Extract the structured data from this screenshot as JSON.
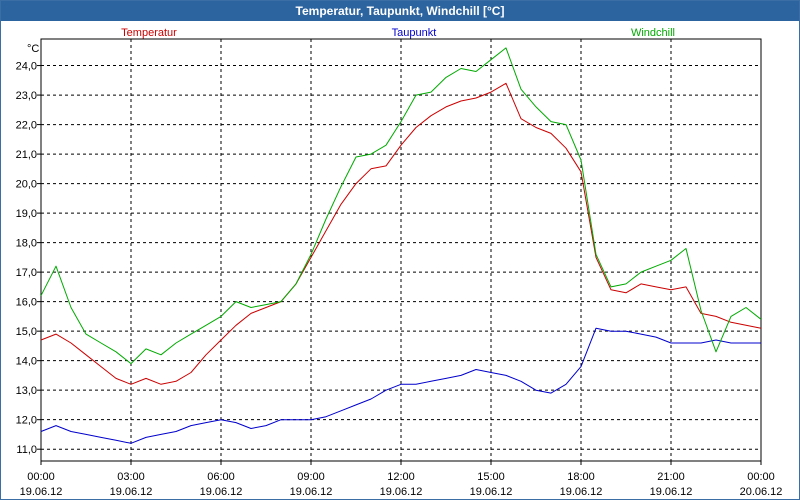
{
  "window": {
    "title": "Temperatur, Taupunkt, Windchill [°C]"
  },
  "chart_data": {
    "type": "line",
    "title": "Temperatur, Taupunkt, Windchill [°C]",
    "ylabel": "°C",
    "ylim": [
      10.6,
      24.9
    ],
    "grid": true,
    "legend_placement": "top",
    "yticks": [
      "24,0",
      "23,0",
      "22,0",
      "21,0",
      "20,0",
      "19,0",
      "18,0",
      "17,0",
      "16,0",
      "15,0",
      "14,0",
      "13,0",
      "12,0",
      "11,0"
    ],
    "ytick_values": [
      24,
      23,
      22,
      21,
      20,
      19,
      18,
      17,
      16,
      15,
      14,
      13,
      12,
      11
    ],
    "xticks": [
      {
        "time": "00:00",
        "date": "19.06.12",
        "hour": 0
      },
      {
        "time": "03:00",
        "date": "19.06.12",
        "hour": 3
      },
      {
        "time": "06:00",
        "date": "19.06.12",
        "hour": 6
      },
      {
        "time": "09:00",
        "date": "19.06.12",
        "hour": 9
      },
      {
        "time": "12:00",
        "date": "19.06.12",
        "hour": 12
      },
      {
        "time": "15:00",
        "date": "19.06.12",
        "hour": 15
      },
      {
        "time": "18:00",
        "date": "19.06.12",
        "hour": 18
      },
      {
        "time": "21:00",
        "date": "19.06.12",
        "hour": 21
      },
      {
        "time": "00:00",
        "date": "20.06.12",
        "hour": 24
      }
    ],
    "xlim": [
      0,
      24
    ],
    "x": [
      0,
      0.5,
      1,
      1.5,
      2,
      2.5,
      3,
      3.5,
      4,
      4.5,
      5,
      5.5,
      6,
      6.5,
      7,
      7.5,
      8,
      8.5,
      9,
      9.5,
      10,
      10.5,
      11,
      11.5,
      12,
      12.5,
      13,
      13.5,
      14,
      14.5,
      15,
      15.5,
      16,
      16.5,
      17,
      17.5,
      18,
      18.5,
      19,
      19.5,
      20,
      20.5,
      21,
      21.5,
      22,
      22.5,
      23,
      23.5,
      24
    ],
    "series": [
      {
        "name": "Temperatur",
        "color": "#cc0000",
        "values": [
          14.7,
          14.9,
          14.6,
          14.2,
          13.8,
          13.4,
          13.2,
          13.4,
          13.2,
          13.3,
          13.6,
          14.2,
          14.7,
          15.2,
          15.6,
          15.8,
          16.0,
          16.6,
          17.5,
          18.4,
          19.3,
          20.0,
          20.5,
          20.6,
          21.3,
          21.9,
          22.3,
          22.6,
          22.8,
          22.9,
          23.1,
          23.4,
          22.2,
          21.9,
          21.7,
          21.2,
          20.4,
          17.5,
          16.4,
          16.3,
          16.6,
          16.5,
          16.4,
          16.5,
          15.6,
          15.5,
          15.3,
          15.2,
          15.1
        ]
      },
      {
        "name": "Taupunkt",
        "color": "#0000cc",
        "values": [
          11.6,
          11.8,
          11.6,
          11.5,
          11.4,
          11.3,
          11.2,
          11.4,
          11.5,
          11.6,
          11.8,
          11.9,
          12.0,
          11.9,
          11.7,
          11.8,
          12.0,
          12.0,
          12.0,
          12.1,
          12.3,
          12.5,
          12.7,
          13.0,
          13.2,
          13.2,
          13.3,
          13.4,
          13.5,
          13.7,
          13.6,
          13.5,
          13.3,
          13.0,
          12.9,
          13.2,
          13.8,
          15.1,
          15.0,
          15.0,
          14.9,
          14.8,
          14.6,
          14.6,
          14.6,
          14.7,
          14.6,
          14.6,
          14.6
        ]
      },
      {
        "name": "Windchill",
        "color": "#00aa00",
        "values": [
          16.2,
          17.2,
          15.8,
          14.9,
          14.6,
          14.3,
          13.9,
          14.4,
          14.2,
          14.6,
          14.9,
          15.2,
          15.5,
          16.0,
          15.8,
          15.9,
          16.0,
          16.6,
          17.6,
          18.8,
          19.9,
          20.9,
          21.0,
          21.3,
          22.1,
          23.0,
          23.1,
          23.6,
          23.9,
          23.8,
          24.2,
          24.6,
          23.2,
          22.6,
          22.1,
          22.0,
          20.8,
          17.6,
          16.5,
          16.6,
          17.0,
          17.2,
          17.4,
          17.8,
          15.7,
          14.3,
          15.5,
          15.8,
          15.4
        ]
      }
    ]
  }
}
